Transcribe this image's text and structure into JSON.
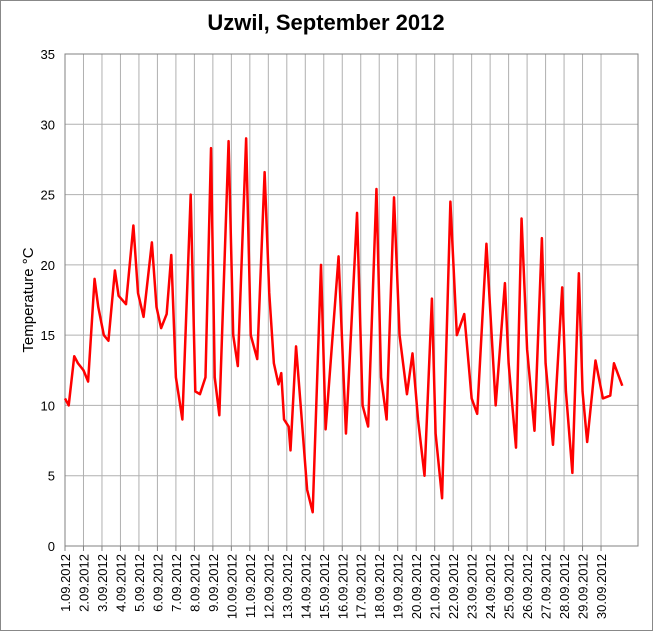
{
  "chart_data": {
    "type": "line",
    "title": "Uzwil, September 2012",
    "y_label": "Temperature °C",
    "x": [
      0,
      0.2,
      0.5,
      0.7,
      1.0,
      1.25,
      1.6,
      1.8,
      2.1,
      2.35,
      2.7,
      2.9,
      3.3,
      3.7,
      3.95,
      4.25,
      4.7,
      4.95,
      5.2,
      5.5,
      5.75,
      6.0,
      6.35,
      6.8,
      7.05,
      7.3,
      7.6,
      7.9,
      8.1,
      8.35,
      8.85,
      9.1,
      9.35,
      9.8,
      10.05,
      10.4,
      10.8,
      11.05,
      11.3,
      11.55,
      11.7,
      11.85,
      12.1,
      12.2,
      12.5,
      12.75,
      13.1,
      13.4,
      13.85,
      14.1,
      14.8,
      15.2,
      15.8,
      16.1,
      16.4,
      16.85,
      17.1,
      17.4,
      17.8,
      18.1,
      18.5,
      18.8,
      19.1,
      19.45,
      19.85,
      20.05,
      20.4,
      20.85,
      21.2,
      21.6,
      22.0,
      22.3,
      22.8,
      23.3,
      23.8,
      24.0,
      24.4,
      24.7,
      25.0,
      25.4,
      25.8,
      26.0,
      26.4,
      26.9,
      27.1,
      27.45,
      27.8,
      28.0,
      28.25,
      28.7,
      29.1,
      29.5,
      29.7,
      30.15
    ],
    "series": [
      {
        "name": "Temperature",
        "color": "#ff0000",
        "values": [
          10.5,
          10,
          13.5,
          13,
          12.5,
          11.7,
          19,
          17,
          15,
          14.6,
          19.6,
          17.8,
          17.2,
          22.8,
          18,
          16.3,
          21.6,
          17,
          15.5,
          16.5,
          20.7,
          12,
          9,
          25,
          11,
          10.8,
          12,
          28.3,
          12,
          9.3,
          28.8,
          15,
          12.8,
          29,
          15,
          13.3,
          26.6,
          18,
          13,
          11.5,
          12.3,
          9,
          8.5,
          6.8,
          14.2,
          10,
          4,
          2.4,
          20,
          8.3,
          20.6,
          8,
          23.7,
          10,
          8.5,
          25.4,
          12,
          9,
          24.8,
          15,
          10.8,
          13.7,
          9,
          5,
          17.6,
          8,
          3.4,
          24.5,
          15,
          16.5,
          10.5,
          9.4,
          21.5,
          10,
          18.7,
          13,
          7,
          23.3,
          14,
          8.2,
          21.9,
          13,
          7.2,
          18.4,
          11,
          5.2,
          19.4,
          11,
          7.4,
          13.2,
          10.5,
          10.7,
          13,
          11.4
        ]
      }
    ],
    "xlim": [
      0,
      31
    ],
    "xticks": [
      {
        "value": 0,
        "label": "1.09.2012"
      },
      {
        "value": 1,
        "label": "2.09.2012"
      },
      {
        "value": 2,
        "label": "3.09.2012"
      },
      {
        "value": 3,
        "label": "4.09.2012"
      },
      {
        "value": 4,
        "label": "5.09.2012"
      },
      {
        "value": 5,
        "label": "6.09.2012"
      },
      {
        "value": 6,
        "label": "7.09.2012"
      },
      {
        "value": 7,
        "label": "8.09.2012"
      },
      {
        "value": 8,
        "label": "9.09.2012"
      },
      {
        "value": 9,
        "label": "10.09.2012"
      },
      {
        "value": 10,
        "label": "11.09.2012"
      },
      {
        "value": 11,
        "label": "12.09.2012"
      },
      {
        "value": 12,
        "label": "13.09.2012"
      },
      {
        "value": 13,
        "label": "14.09.2012"
      },
      {
        "value": 14,
        "label": "15.09.2012"
      },
      {
        "value": 15,
        "label": "16.09.2012"
      },
      {
        "value": 16,
        "label": "17.09.2012"
      },
      {
        "value": 17,
        "label": "18.09.2012"
      },
      {
        "value": 18,
        "label": "19.09.2012"
      },
      {
        "value": 19,
        "label": "20.09.2012"
      },
      {
        "value": 20,
        "label": "21.09.2012"
      },
      {
        "value": 21,
        "label": "22.09.2012"
      },
      {
        "value": 22,
        "label": "23.09.2012"
      },
      {
        "value": 23,
        "label": "24.09.2012"
      },
      {
        "value": 24,
        "label": "25.09.2012"
      },
      {
        "value": 25,
        "label": "26.09.2012"
      },
      {
        "value": 26,
        "label": "27.09.2012"
      },
      {
        "value": 27,
        "label": "28.09.2012"
      },
      {
        "value": 28,
        "label": "29.09.2012"
      },
      {
        "value": 29,
        "label": "30.09.2012"
      }
    ],
    "ylim": [
      0,
      35
    ],
    "yticks": [
      0,
      5,
      10,
      15,
      20,
      25,
      30,
      35
    ],
    "grid": true
  }
}
